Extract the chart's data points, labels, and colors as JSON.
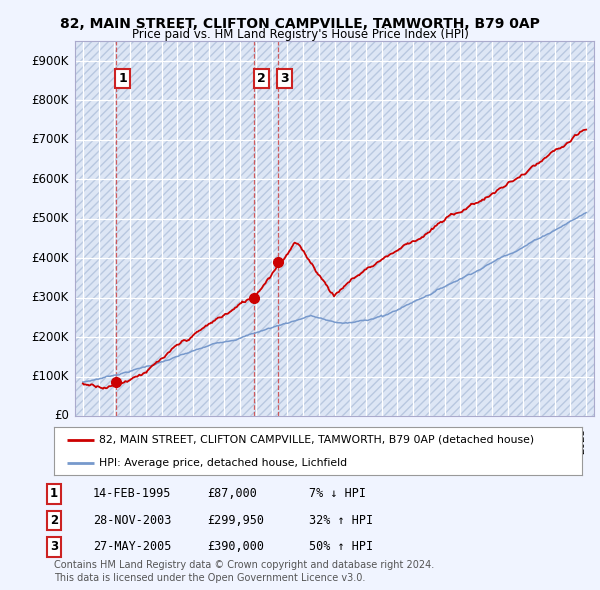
{
  "title1": "82, MAIN STREET, CLIFTON CAMPVILLE, TAMWORTH, B79 0AP",
  "title2": "Price paid vs. HM Land Registry's House Price Index (HPI)",
  "background_color": "#f0f4ff",
  "plot_bg_color": "#dde6f5",
  "hatch_color": "#b8c8e0",
  "red_line_color": "#cc0000",
  "blue_line_color": "#7799cc",
  "sale_marker_color": "#cc0000",
  "dashed_line_color": "#cc4444",
  "annotation_border_color": "#cc2222",
  "transactions": [
    {
      "label": "1",
      "date_num": 1995.12,
      "price": 87000
    },
    {
      "label": "2",
      "date_num": 2003.91,
      "price": 299950
    },
    {
      "label": "3",
      "date_num": 2005.39,
      "price": 390000
    }
  ],
  "ylim": [
    0,
    950000
  ],
  "xlim": [
    1992.5,
    2025.5
  ],
  "yticks": [
    0,
    100000,
    200000,
    300000,
    400000,
    500000,
    600000,
    700000,
    800000,
    900000
  ],
  "ytick_labels": [
    "£0",
    "£100K",
    "£200K",
    "£300K",
    "£400K",
    "£500K",
    "£600K",
    "£700K",
    "£800K",
    "£900K"
  ],
  "xticks": [
    1993,
    1994,
    1995,
    1996,
    1997,
    1998,
    1999,
    2000,
    2001,
    2002,
    2003,
    2004,
    2005,
    2006,
    2007,
    2008,
    2009,
    2010,
    2011,
    2012,
    2013,
    2014,
    2015,
    2016,
    2017,
    2018,
    2019,
    2020,
    2021,
    2022,
    2023,
    2024,
    2025
  ],
  "legend_label_red": "82, MAIN STREET, CLIFTON CAMPVILLE, TAMWORTH, B79 0AP (detached house)",
  "legend_label_blue": "HPI: Average price, detached house, Lichfield",
  "footer1": "Contains HM Land Registry data © Crown copyright and database right 2024.",
  "footer2": "This data is licensed under the Open Government Licence v3.0.",
  "table_rows": [
    [
      "1",
      "14-FEB-1995",
      "£87,000",
      "7% ↓ HPI"
    ],
    [
      "2",
      "28-NOV-2003",
      "£299,950",
      "32% ↑ HPI"
    ],
    [
      "3",
      "27-MAY-2005",
      "£390,000",
      "50% ↑ HPI"
    ]
  ]
}
